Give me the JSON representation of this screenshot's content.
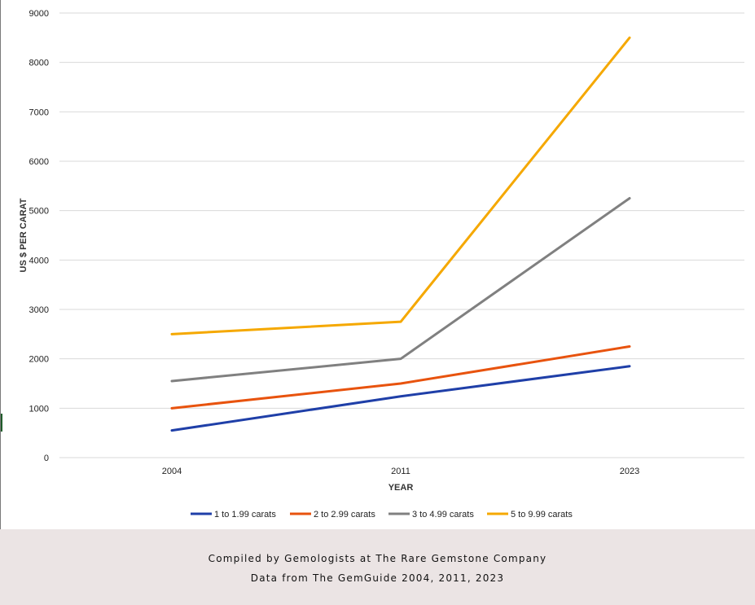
{
  "chart_data": {
    "type": "line",
    "title": "",
    "xlabel": "YEAR",
    "ylabel": "US $ PER CARAT",
    "categories": [
      "2004",
      "2011",
      "2023"
    ],
    "ylim": [
      0,
      9000
    ],
    "yticks": [
      0,
      1000,
      2000,
      3000,
      4000,
      5000,
      6000,
      7000,
      8000,
      9000
    ],
    "grid": true,
    "legend_position": "bottom",
    "series": [
      {
        "name": "1 to 1.99 carats",
        "color": "#1f3fa8",
        "values": [
          550,
          1240,
          1850
        ]
      },
      {
        "name": "2 to 2.99 carats",
        "color": "#e8530e",
        "values": [
          1000,
          1500,
          2250
        ]
      },
      {
        "name": "3 to 4.99 carats",
        "color": "#808080",
        "values": [
          1550,
          2000,
          5250
        ]
      },
      {
        "name": "5 to 9.99 carats",
        "color": "#f5a800",
        "values": [
          2500,
          2750,
          8500
        ]
      }
    ]
  },
  "footer": {
    "line1": "Compiled by Gemologists at The Rare Gemstone Company",
    "line2": "Data from The GemGuide 2004, 2011, 2023"
  }
}
